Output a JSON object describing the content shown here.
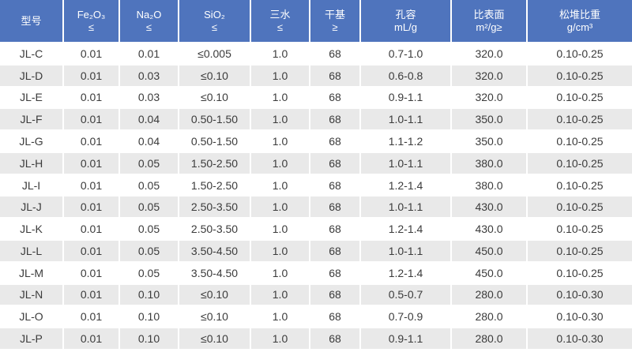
{
  "colors": {
    "header_bg": "#4f74bd",
    "header_text": "#ffffff",
    "stripe_bg": "#e9e9e9",
    "row_bg": "#ffffff",
    "body_text": "#3b3b3b"
  },
  "chart_data": {
    "type": "table",
    "columns": [
      {
        "title": "型号",
        "sub": ""
      },
      {
        "title": "Fe₂O₃",
        "sub": "≤"
      },
      {
        "title": "Na₂O",
        "sub": "≤"
      },
      {
        "title": "SiO₂",
        "sub": "≤"
      },
      {
        "title": "三水",
        "sub": "≤"
      },
      {
        "title": "干基",
        "sub": "≥"
      },
      {
        "title": "孔容",
        "sub": "mL/g"
      },
      {
        "title": "比表面",
        "sub": "m²/g≥"
      },
      {
        "title": "松堆比重",
        "sub": "g/cm³"
      }
    ],
    "rows": [
      [
        "JL-C",
        "0.01",
        "0.01",
        "≤0.005",
        "1.0",
        "68",
        "0.7-1.0",
        "320.0",
        "0.10-0.25"
      ],
      [
        "JL-D",
        "0.01",
        "0.03",
        "≤0.10",
        "1.0",
        "68",
        "0.6-0.8",
        "320.0",
        "0.10-0.25"
      ],
      [
        "JL-E",
        "0.01",
        "0.03",
        "≤0.10",
        "1.0",
        "68",
        "0.9-1.1",
        "320.0",
        "0.10-0.25"
      ],
      [
        "JL-F",
        "0.01",
        "0.04",
        "0.50-1.50",
        "1.0",
        "68",
        "1.0-1.1",
        "350.0",
        "0.10-0.25"
      ],
      [
        "JL-G",
        "0.01",
        "0.04",
        "0.50-1.50",
        "1.0",
        "68",
        "1.1-1.2",
        "350.0",
        "0.10-0.25"
      ],
      [
        "JL-H",
        "0.01",
        "0.05",
        "1.50-2.50",
        "1.0",
        "68",
        "1.0-1.1",
        "380.0",
        "0.10-0.25"
      ],
      [
        "JL-I",
        "0.01",
        "0.05",
        "1.50-2.50",
        "1.0",
        "68",
        "1.2-1.4",
        "380.0",
        "0.10-0.25"
      ],
      [
        "JL-J",
        "0.01",
        "0.05",
        "2.50-3.50",
        "1.0",
        "68",
        "1.0-1.1",
        "430.0",
        "0.10-0.25"
      ],
      [
        "JL-K",
        "0.01",
        "0.05",
        "2.50-3.50",
        "1.0",
        "68",
        "1.2-1.4",
        "430.0",
        "0.10-0.25"
      ],
      [
        "JL-L",
        "0.01",
        "0.05",
        "3.50-4.50",
        "1.0",
        "68",
        "1.0-1.1",
        "450.0",
        "0.10-0.25"
      ],
      [
        "JL-M",
        "0.01",
        "0.05",
        "3.50-4.50",
        "1.0",
        "68",
        "1.2-1.4",
        "450.0",
        "0.10-0.25"
      ],
      [
        "JL-N",
        "0.01",
        "0.10",
        "≤0.10",
        "1.0",
        "68",
        "0.5-0.7",
        "280.0",
        "0.10-0.30"
      ],
      [
        "JL-O",
        "0.01",
        "0.10",
        "≤0.10",
        "1.0",
        "68",
        "0.7-0.9",
        "280.0",
        "0.10-0.30"
      ],
      [
        "JL-P",
        "0.01",
        "0.10",
        "≤0.10",
        "1.0",
        "68",
        "0.9-1.1",
        "280.0",
        "0.10-0.30"
      ]
    ]
  }
}
